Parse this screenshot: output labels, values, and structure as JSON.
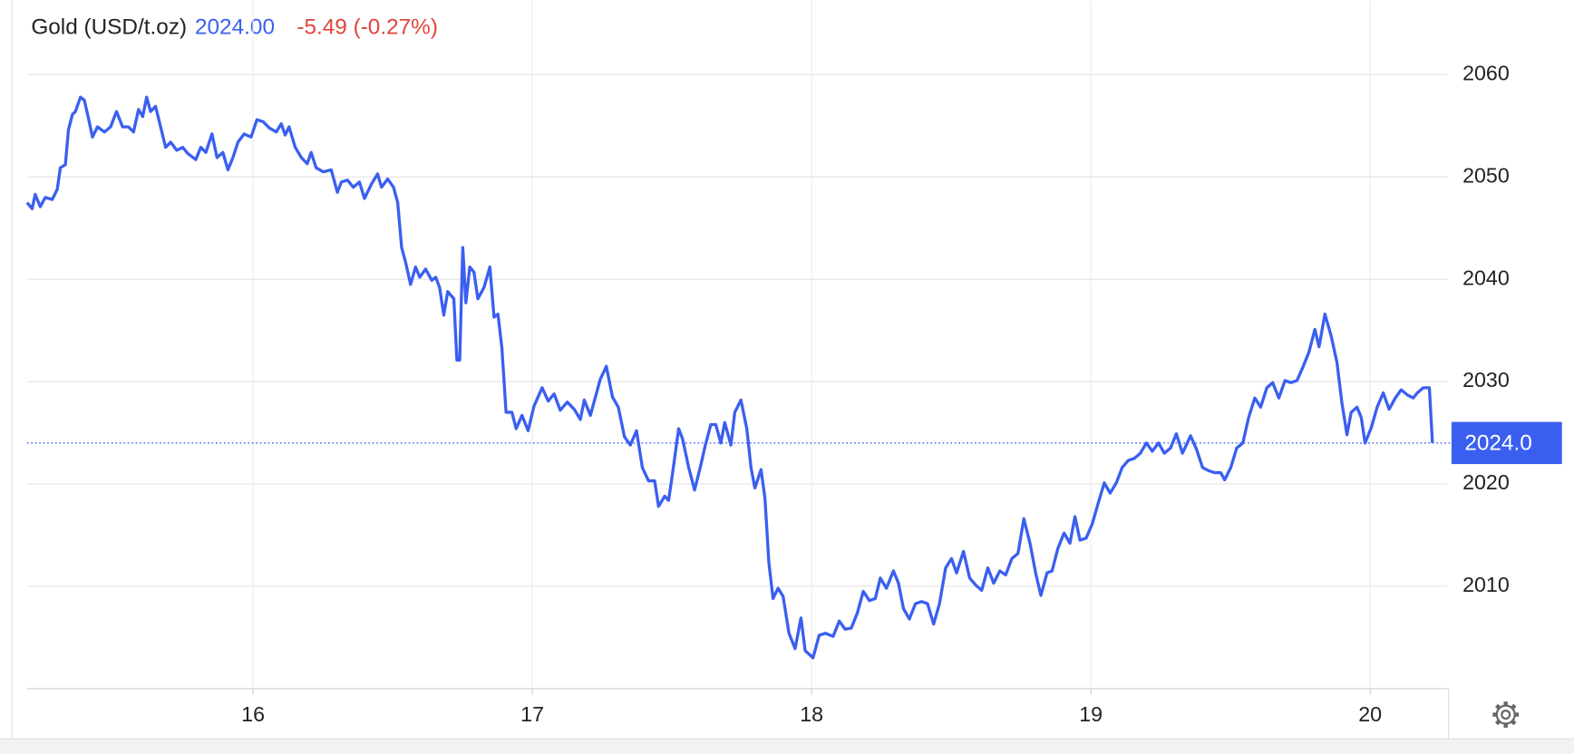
{
  "chart_data": {
    "type": "line",
    "title": "Gold (USD/t.oz)",
    "price": "2024.00",
    "change": "-5.49 (-0.27%)",
    "price_color": "#3a5ff0",
    "change_color": "#e0443c",
    "reference_line": {
      "value": 2024,
      "label": "2024.0"
    },
    "xlim": [
      15.191,
      20.277
    ],
    "xticks": [
      16,
      17,
      18,
      19,
      20
    ],
    "ylim": [
      2000,
      2066
    ],
    "yticks": [
      2010,
      2020,
      2030,
      2040,
      2050,
      2060
    ],
    "grid": true,
    "series": [
      {
        "color": "#3a5ff0",
        "x": [
          15.191,
          15.209,
          15.22,
          15.238,
          15.256,
          15.281,
          15.299,
          15.31,
          15.328,
          15.339,
          15.353,
          15.364,
          15.382,
          15.396,
          15.411,
          15.425,
          15.443,
          15.468,
          15.49,
          15.511,
          15.533,
          15.554,
          15.572,
          15.59,
          15.605,
          15.619,
          15.633,
          15.651,
          15.669,
          15.687,
          15.705,
          15.727,
          15.748,
          15.766,
          15.795,
          15.813,
          15.831,
          15.853,
          15.871,
          15.892,
          15.91,
          15.928,
          15.946,
          15.968,
          15.993,
          16.014,
          16.036,
          16.058,
          16.083,
          16.101,
          16.115,
          16.129,
          16.151,
          16.173,
          16.194,
          16.208,
          16.226,
          16.252,
          16.28,
          16.302,
          16.316,
          16.338,
          16.359,
          16.381,
          16.399,
          16.424,
          16.446,
          16.46,
          16.482,
          16.503,
          16.518,
          16.532,
          16.546,
          16.564,
          16.582,
          16.597,
          16.618,
          16.64,
          16.654,
          16.668,
          16.683,
          16.697,
          16.719,
          16.73,
          16.74,
          16.751,
          16.762,
          16.776,
          16.791,
          16.805,
          16.827,
          16.848,
          16.863,
          16.877,
          16.891,
          16.906,
          16.927,
          16.942,
          16.963,
          16.985,
          17.006,
          17.035,
          17.057,
          17.078,
          17.1,
          17.125,
          17.15,
          17.172,
          17.186,
          17.208,
          17.229,
          17.243,
          17.265,
          17.287,
          17.308,
          17.33,
          17.351,
          17.373,
          17.394,
          17.416,
          17.438,
          17.452,
          17.474,
          17.488,
          17.502,
          17.524,
          17.538,
          17.56,
          17.581,
          17.603,
          17.617,
          17.639,
          17.657,
          17.675,
          17.689,
          17.711,
          17.725,
          17.747,
          17.768,
          17.783,
          17.797,
          17.819,
          17.833,
          17.847,
          17.862,
          17.88,
          17.898,
          17.919,
          17.941,
          17.962,
          17.977,
          18.005,
          18.027,
          18.049,
          18.077,
          18.099,
          18.12,
          18.142,
          18.164,
          18.185,
          18.207,
          18.228,
          18.246,
          18.268,
          18.293,
          18.311,
          18.329,
          18.35,
          18.372,
          18.394,
          18.415,
          18.437,
          18.458,
          18.48,
          18.501,
          18.519,
          18.544,
          18.566,
          18.588,
          18.609,
          18.631,
          18.652,
          18.674,
          18.695,
          18.717,
          18.739,
          18.76,
          18.782,
          18.803,
          18.821,
          18.843,
          18.861,
          18.882,
          18.904,
          18.925,
          18.943,
          18.961,
          18.983,
          19.005,
          19.026,
          19.048,
          19.069,
          19.091,
          19.112,
          19.134,
          19.156,
          19.177,
          19.199,
          19.22,
          19.242,
          19.263,
          19.285,
          19.306,
          19.328,
          19.357,
          19.378,
          19.4,
          19.421,
          19.443,
          19.465,
          19.479,
          19.501,
          19.522,
          19.544,
          19.565,
          19.587,
          19.608,
          19.63,
          19.651,
          19.673,
          19.695,
          19.716,
          19.738,
          19.759,
          19.781,
          19.802,
          19.817,
          19.838,
          19.86,
          19.881,
          19.899,
          19.917,
          19.932,
          19.953,
          19.968,
          19.982,
          20.004,
          20.025,
          20.047,
          20.068,
          20.09,
          20.111,
          20.133,
          20.154,
          20.169,
          20.19,
          20.212,
          20.223
        ],
        "values": [
          2047.5,
          2046.9,
          2048.3,
          2047.1,
          2048,
          2047.8,
          2048.8,
          2050.9,
          2051.2,
          2054.6,
          2056.1,
          2056.4,
          2057.8,
          2057.5,
          2055.7,
          2053.9,
          2054.9,
          2054.4,
          2054.9,
          2056.4,
          2054.9,
          2054.9,
          2054.4,
          2056.6,
          2055.9,
          2057.8,
          2056.4,
          2056.9,
          2054.9,
          2052.9,
          2053.4,
          2052.6,
          2052.9,
          2052.3,
          2051.7,
          2052.9,
          2052.4,
          2054.2,
          2051.9,
          2052.4,
          2050.7,
          2051.9,
          2053.4,
          2054.2,
          2053.9,
          2055.6,
          2055.4,
          2054.8,
          2054.4,
          2055.2,
          2054.1,
          2054.9,
          2052.9,
          2051.9,
          2051.3,
          2052.4,
          2050.9,
          2050.5,
          2050.7,
          2048.5,
          2049.5,
          2049.7,
          2049,
          2049.5,
          2047.9,
          2049.3,
          2050.3,
          2049,
          2049.8,
          2049,
          2047.5,
          2043.1,
          2041.7,
          2039.5,
          2041.2,
          2040.2,
          2041,
          2039.9,
          2040.2,
          2039.2,
          2036.5,
          2038.8,
          2038.1,
          2032.1,
          2032.1,
          2043.1,
          2037.7,
          2041.2,
          2040.7,
          2038.1,
          2039.2,
          2041.2,
          2036.3,
          2036.6,
          2033.3,
          2027,
          2027,
          2025.4,
          2026.7,
          2025.2,
          2027.6,
          2029.4,
          2028.1,
          2028.8,
          2027.2,
          2028,
          2027.3,
          2026.3,
          2028.2,
          2026.7,
          2028.8,
          2030.2,
          2031.5,
          2028.5,
          2027.5,
          2024.6,
          2023.8,
          2025.2,
          2021.6,
          2020.3,
          2020.3,
          2017.8,
          2018.8,
          2018.4,
          2021,
          2025.4,
          2024.4,
          2021.6,
          2019.4,
          2021.8,
          2023.5,
          2025.8,
          2025.8,
          2024,
          2026,
          2023.8,
          2027,
          2028.2,
          2025.4,
          2021.6,
          2019.6,
          2021.4,
          2018.6,
          2012.3,
          2008.8,
          2009.8,
          2009,
          2005.4,
          2003.9,
          2006.9,
          2003.7,
          2003,
          2005.2,
          2005.4,
          2005.1,
          2006.6,
          2005.8,
          2005.9,
          2007.4,
          2009.5,
          2008.6,
          2008.8,
          2010.8,
          2009.8,
          2011.5,
          2010.3,
          2007.8,
          2006.8,
          2008.3,
          2008.5,
          2008.3,
          2006.3,
          2008.3,
          2011.8,
          2012.7,
          2011.3,
          2013.4,
          2010.8,
          2010.1,
          2009.6,
          2011.8,
          2010.3,
          2011.5,
          2011.1,
          2012.7,
          2013.2,
          2016.6,
          2014.2,
          2011.2,
          2009.1,
          2011.3,
          2011.5,
          2013.7,
          2015.2,
          2014.2,
          2016.8,
          2014.5,
          2014.7,
          2016.1,
          2018.1,
          2020.1,
          2019.1,
          2020.1,
          2021.6,
          2022.3,
          2022.5,
          2023,
          2024,
          2023.2,
          2024,
          2023,
          2023.5,
          2024.9,
          2023,
          2024.7,
          2023.4,
          2021.6,
          2021.3,
          2021.1,
          2021.1,
          2020.4,
          2021.6,
          2023.5,
          2024,
          2026.5,
          2028.4,
          2027.5,
          2029.4,
          2029.9,
          2028.4,
          2030.1,
          2029.9,
          2030.1,
          2031.4,
          2032.9,
          2035.1,
          2033.4,
          2036.6,
          2034.5,
          2031.9,
          2027.9,
          2024.8,
          2027,
          2027.5,
          2026.5,
          2024,
          2025.5,
          2027.5,
          2028.9,
          2027.3,
          2028.4,
          2029.2,
          2028.7,
          2028.4,
          2028.9,
          2029.4,
          2029.4,
          2024
        ]
      }
    ]
  }
}
